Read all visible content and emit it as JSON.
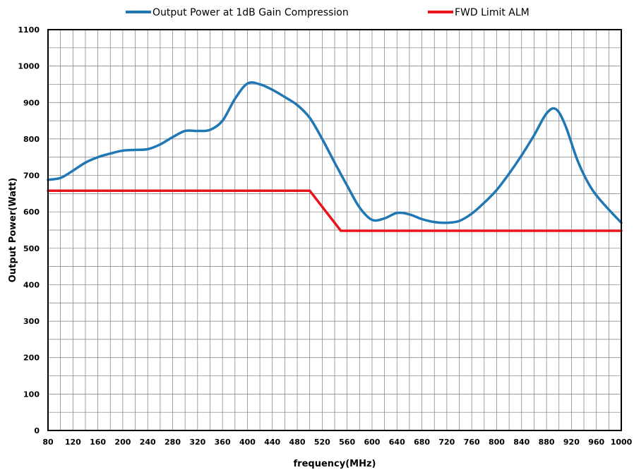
{
  "chart_data": {
    "type": "line",
    "title": "",
    "xlabel": "frequency(MHz)",
    "ylabel": "Output Power(Watt)",
    "xlim": [
      80,
      1000
    ],
    "ylim": [
      0,
      1100
    ],
    "x_ticks": [
      80,
      120,
      160,
      200,
      240,
      280,
      320,
      360,
      400,
      440,
      480,
      520,
      560,
      600,
      640,
      680,
      720,
      760,
      800,
      840,
      880,
      920,
      960,
      1000
    ],
    "y_ticks": [
      0,
      100,
      200,
      300,
      400,
      500,
      600,
      700,
      800,
      900,
      1000,
      1100
    ],
    "grid": true,
    "legend_position": "top",
    "series": [
      {
        "name": "Output Power at 1dB Gain Compression",
        "color": "#1f77b4",
        "x": [
          80,
          100,
          120,
          140,
          160,
          180,
          200,
          220,
          240,
          260,
          280,
          300,
          320,
          340,
          360,
          380,
          400,
          420,
          440,
          460,
          480,
          500,
          520,
          540,
          560,
          580,
          600,
          620,
          640,
          660,
          680,
          700,
          720,
          740,
          760,
          780,
          800,
          820,
          840,
          860,
          880,
          895,
          910,
          930,
          950,
          970,
          1000
        ],
        "y": [
          688,
          693,
          713,
          735,
          750,
          760,
          768,
          770,
          772,
          785,
          805,
          822,
          822,
          825,
          850,
          910,
          952,
          950,
          935,
          915,
          893,
          858,
          800,
          735,
          672,
          612,
          578,
          582,
          597,
          593,
          580,
          572,
          570,
          575,
          595,
          625,
          660,
          705,
          755,
          810,
          870,
          882,
          838,
          740,
          670,
          625,
          570
        ]
      },
      {
        "name": "FWD Limit ALM",
        "color": "#e8141b",
        "x": [
          80,
          500,
          550,
          1000
        ],
        "y": [
          658,
          658,
          548,
          548
        ]
      }
    ]
  }
}
